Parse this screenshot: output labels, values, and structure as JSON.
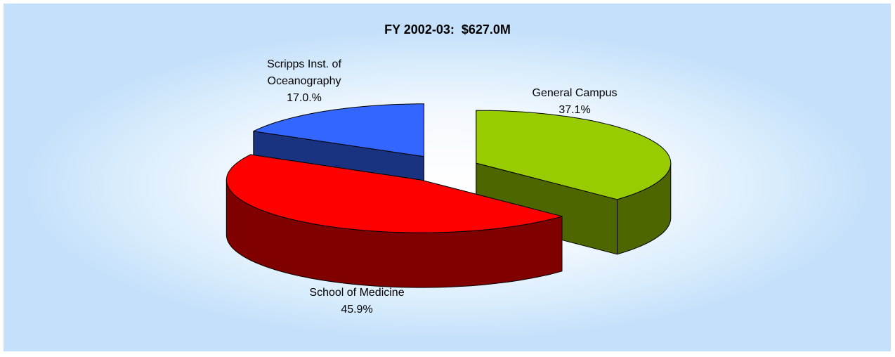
{
  "chart_data": {
    "type": "pie",
    "title": "FY 2002-03:  $627.0M",
    "categories": [
      "General Campus",
      "School of Medicine",
      "Scripps Inst. of Oceanography"
    ],
    "values": [
      37.1,
      45.9,
      17.0
    ],
    "value_labels": [
      "37.1%",
      "45.9%",
      "17.0.%"
    ],
    "colors": [
      "#99cc00",
      "#ff0000",
      "#3366ff"
    ]
  }
}
